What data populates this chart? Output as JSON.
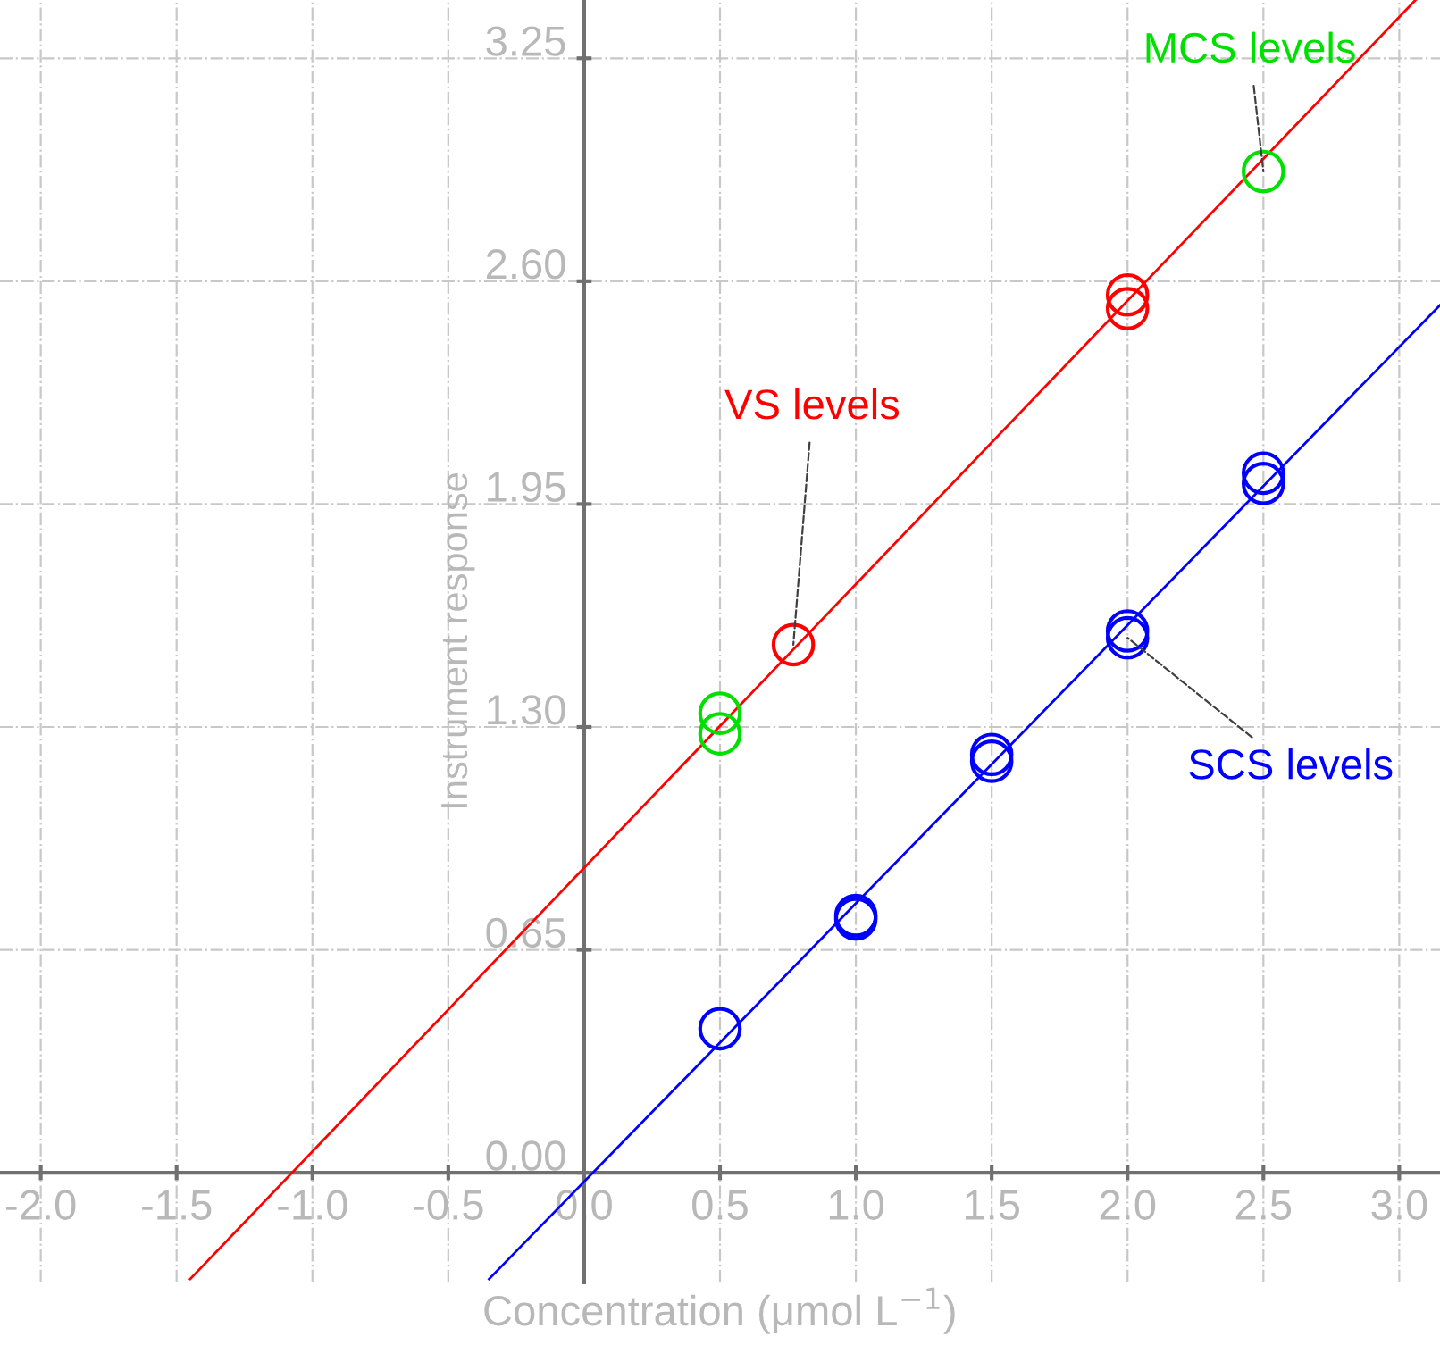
{
  "chart_data": {
    "type": "scatter",
    "xlabel": "Concentration (μmol L$^{−1}$)",
    "ylabel": "Instrument response",
    "xlim": [
      -2.15,
      3.15
    ],
    "ylim": [
      -0.32,
      3.42
    ],
    "xticks": [
      {
        "value": -2.0,
        "label": "-2.0"
      },
      {
        "value": -1.5,
        "label": "-1.5"
      },
      {
        "value": -1.0,
        "label": "-1.0"
      },
      {
        "value": -0.5,
        "label": "-0.5"
      },
      {
        "value": 0,
        "label": "0.0"
      },
      0.5,
      {
        "value": 1,
        "label": "1.0"
      },
      1.5,
      {
        "value": 2,
        "label": "2.0"
      },
      2.5,
      {
        "value": 3,
        "label": "3.0"
      }
    ],
    "yticks": [
      {
        "value": 0,
        "label": "0.00"
      },
      0.65,
      {
        "value": 1.3,
        "label": "1.30"
      },
      1.95,
      {
        "value": 2.6,
        "label": "2.60"
      },
      3.25
    ],
    "grid": true,
    "marker": "circle",
    "series": [
      {
        "color": "#ff0000",
        "x": [
          0.77,
          2.0,
          2.0
        ],
        "values": [
          1.54,
          2.56,
          2.52
        ]
      },
      {
        "color": "#0000ff",
        "x": [
          0.5,
          1.0,
          1.0,
          1.5,
          1.5,
          2.0,
          2.0,
          2.5,
          2.5
        ],
        "values": [
          0.42,
          0.75,
          0.74,
          1.22,
          1.2,
          1.58,
          1.56,
          2.04,
          2.01
        ]
      },
      {
        "color": "#00e000",
        "x": [
          0.5,
          0.5,
          2.5
        ],
        "values": [
          1.34,
          1.28,
          2.92
        ]
      },
      {
        "type": "line",
        "marker": "none",
        "color": "#ff0000",
        "x": [
          -1.45,
          3.06
        ],
        "values": [
          -0.31,
          3.42
        ]
      },
      {
        "type": "line",
        "marker": "none",
        "color": "#0000ff",
        "x": [
          -0.35,
          3.15
        ],
        "values": [
          -0.31,
          2.53
        ]
      }
    ],
    "annotations": [
      {
        "text": "VS levels",
        "x": 0.77,
        "y": 1.54
      },
      {
        "text": "SCS levels",
        "x": 2.0,
        "y": 1.56
      },
      {
        "text": "MCS levels",
        "x": 2.5,
        "y": 2.92
      }
    ]
  }
}
